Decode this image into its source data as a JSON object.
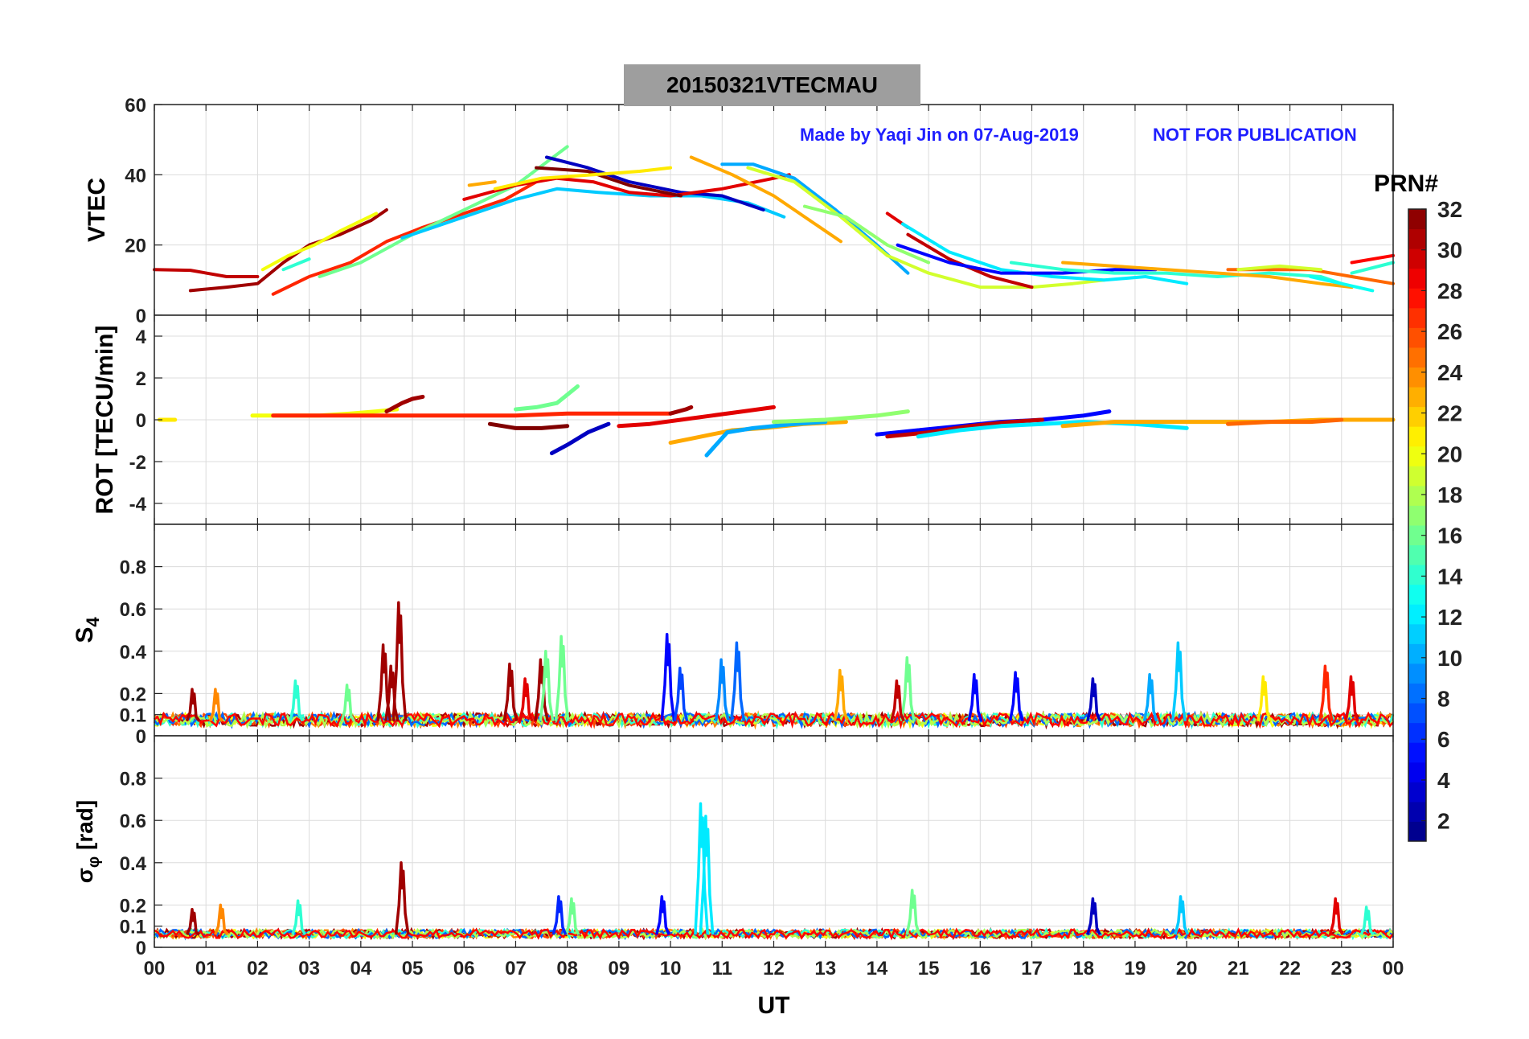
{
  "title": {
    "date": "20150321",
    "quantity": "VTEC",
    "station": "MAU"
  },
  "watermark": {
    "made_by": "Made by Yaqi Jin on 07-Aug-2019",
    "notice": "NOT FOR PUBLICATION"
  },
  "colorbar": {
    "label": "PRN#",
    "range": [
      1,
      32
    ],
    "ticks": [
      "2",
      "4",
      "6",
      "8",
      "10",
      "12",
      "14",
      "16",
      "18",
      "20",
      "22",
      "24",
      "26",
      "28",
      "30",
      "32"
    ],
    "colormap": "jet"
  },
  "xaxis": {
    "label": "UT",
    "range_hours": [
      0,
      24
    ],
    "ticks": [
      "00",
      "01",
      "02",
      "03",
      "04",
      "05",
      "06",
      "07",
      "08",
      "09",
      "10",
      "11",
      "12",
      "13",
      "14",
      "15",
      "16",
      "17",
      "18",
      "19",
      "20",
      "21",
      "22",
      "23",
      "00"
    ]
  },
  "chart_data": [
    {
      "type": "line",
      "panel": "vtec",
      "ylabel": "VTEC",
      "ylim": [
        0,
        60
      ],
      "yticks": [
        "0",
        "20",
        "40",
        "60"
      ],
      "grid": true,
      "series": [
        {
          "prn": 30,
          "x": [
            0.0,
            0.7,
            1.4,
            2.0
          ],
          "values": [
            13,
            12.8,
            11,
            11
          ]
        },
        {
          "prn": 31,
          "x": [
            0.7,
            1.4,
            2.0,
            2.5,
            3.0,
            3.6,
            4.2,
            4.5
          ],
          "values": [
            7,
            8,
            9,
            15,
            20,
            23,
            27,
            30
          ]
        },
        {
          "prn": 20,
          "x": [
            2.1,
            2.6,
            3.1,
            3.6,
            4.3
          ],
          "values": [
            13,
            17,
            20,
            24,
            29
          ]
        },
        {
          "prn": 14,
          "x": [
            2.5,
            3.0
          ],
          "values": [
            13,
            16
          ]
        },
        {
          "prn": 27,
          "x": [
            2.3,
            3.0,
            3.8,
            4.5,
            5.2,
            6.0,
            6.8,
            7.4
          ],
          "values": [
            6,
            11,
            15,
            21,
            25,
            29,
            33,
            38
          ]
        },
        {
          "prn": 16,
          "x": [
            3.2,
            4.0,
            5.0,
            6.0,
            7.0,
            8.0
          ],
          "values": [
            11,
            15,
            23,
            30,
            37,
            48
          ]
        },
        {
          "prn": 11,
          "x": [
            4.8,
            6.0,
            7.0,
            7.8,
            8.6,
            9.6,
            10.6,
            11.5,
            12.2
          ],
          "values": [
            22,
            28,
            33,
            36,
            35,
            34,
            34,
            32,
            28
          ]
        },
        {
          "prn": 3,
          "x": [
            7.6,
            8.4,
            9.2,
            10.2,
            11.0,
            11.8
          ],
          "values": [
            45,
            42,
            38,
            35,
            34,
            30
          ]
        },
        {
          "prn": 29,
          "x": [
            6.0,
            7.0,
            7.8,
            8.5,
            9.2,
            10.0,
            11.0,
            12.0,
            12.3
          ],
          "values": [
            33,
            37,
            39,
            38,
            35,
            34,
            36,
            39,
            40
          ]
        },
        {
          "prn": 32,
          "x": [
            7.4,
            8.4,
            9.2,
            10.2
          ],
          "values": [
            42,
            41,
            37,
            34
          ]
        },
        {
          "prn": 21,
          "x": [
            6.6,
            7.5,
            8.5,
            9.4,
            10.0
          ],
          "values": [
            36,
            39,
            40,
            41,
            42
          ]
        },
        {
          "prn": 23,
          "x": [
            6.1,
            6.6
          ],
          "values": [
            37,
            38
          ]
        },
        {
          "prn": 23,
          "x": [
            10.4,
            11.2,
            12.0,
            12.7,
            13.3
          ],
          "values": [
            45,
            40,
            34,
            27,
            21
          ]
        },
        {
          "prn": 10,
          "x": [
            11.0,
            11.6,
            12.4,
            13.2,
            14.0,
            14.6
          ],
          "values": [
            43,
            43,
            39,
            30,
            20,
            12
          ]
        },
        {
          "prn": 19,
          "x": [
            11.5,
            12.4,
            13.3,
            14.2,
            15.0,
            16.0,
            17.0,
            17.8,
            18.4
          ],
          "values": [
            42,
            38,
            28,
            17,
            12,
            8,
            8,
            9,
            10
          ]
        },
        {
          "prn": 17,
          "x": [
            12.6,
            13.4,
            14.2,
            15.0
          ],
          "values": [
            31,
            28,
            20,
            15
          ]
        },
        {
          "prn": 29,
          "x": [
            14.2,
            14.6
          ],
          "values": [
            29,
            25
          ]
        },
        {
          "prn": 30,
          "x": [
            14.6,
            15.4,
            16.2,
            17.0
          ],
          "values": [
            23,
            16,
            11,
            8
          ]
        },
        {
          "prn": 12,
          "x": [
            14.5,
            15.4,
            16.4,
            17.4,
            18.4,
            19.2,
            20.0
          ],
          "values": [
            26,
            18,
            13,
            11,
            10,
            11,
            9
          ]
        },
        {
          "prn": 5,
          "x": [
            14.4,
            15.4,
            16.4,
            17.6,
            18.6,
            19.4
          ],
          "values": [
            20,
            15,
            12,
            12,
            13,
            13
          ]
        },
        {
          "prn": 14,
          "x": [
            16.6,
            17.6,
            18.6,
            19.6,
            20.6,
            21.6,
            22.6,
            23.0
          ],
          "values": [
            15,
            13,
            12,
            12,
            11,
            12,
            11,
            9
          ]
        },
        {
          "prn": 23,
          "x": [
            17.6,
            18.6,
            19.6,
            20.6,
            21.6,
            22.6,
            23.2
          ],
          "values": [
            15,
            14,
            13,
            12,
            11,
            9,
            8
          ]
        },
        {
          "prn": 25,
          "x": [
            20.8,
            21.6,
            22.4,
            23.2,
            24.0
          ],
          "values": [
            13,
            13,
            13,
            11,
            9
          ]
        },
        {
          "prn": 19,
          "x": [
            21.0,
            21.8,
            22.6
          ],
          "values": [
            13,
            14,
            13
          ]
        },
        {
          "prn": 13,
          "x": [
            22.4,
            23.0,
            23.6
          ],
          "values": [
            11,
            9,
            7
          ]
        },
        {
          "prn": 14,
          "x": [
            23.2,
            24.0
          ],
          "values": [
            12,
            15
          ]
        },
        {
          "prn": 28,
          "x": [
            23.2,
            24.0
          ],
          "values": [
            15,
            17
          ]
        }
      ]
    },
    {
      "type": "scatter",
      "panel": "rot",
      "ylabel": "ROT [TECU/min]",
      "ylim": [
        -5,
        5
      ],
      "yticks": [
        "-4",
        "-2",
        "0",
        "2",
        "4"
      ],
      "grid": true,
      "series": [
        {
          "prn": 21,
          "x": [
            0.1,
            0.3,
            0.4
          ],
          "values": [
            0,
            0,
            0
          ]
        },
        {
          "prn": 20,
          "x": [
            1.9,
            2.3,
            2.7,
            3.2,
            3.8,
            4.3,
            4.7
          ],
          "values": [
            0.2,
            0.2,
            0.2,
            0.2,
            0.3,
            0.4,
            0.5
          ]
        },
        {
          "prn": 31,
          "x": [
            4.5,
            4.8,
            5.0,
            5.2
          ],
          "values": [
            0.4,
            0.8,
            1.0,
            1.1
          ]
        },
        {
          "prn": 27,
          "x": [
            2.3,
            3.0,
            4.0,
            5.0,
            6.0,
            7.0,
            8.0,
            9.0,
            10.0
          ],
          "values": [
            0.2,
            0.2,
            0.2,
            0.2,
            0.2,
            0.2,
            0.3,
            0.3,
            0.3
          ]
        },
        {
          "prn": 16,
          "x": [
            7.0,
            7.4,
            7.8,
            8.0,
            8.2
          ],
          "values": [
            0.5,
            0.6,
            0.8,
            1.2,
            1.6
          ]
        },
        {
          "prn": 32,
          "x": [
            6.5,
            7.0,
            7.5,
            8.0
          ],
          "values": [
            -0.2,
            -0.4,
            -0.4,
            -0.3
          ]
        },
        {
          "prn": 3,
          "x": [
            7.7,
            8.0,
            8.4,
            8.8
          ],
          "values": [
            -1.6,
            -1.2,
            -0.6,
            -0.2
          ]
        },
        {
          "prn": 29,
          "x": [
            9.0,
            9.6,
            10.2,
            10.8,
            11.4,
            12.0
          ],
          "values": [
            -0.3,
            -0.2,
            0.0,
            0.2,
            0.4,
            0.6
          ]
        },
        {
          "prn": 31,
          "x": [
            10.0,
            10.3,
            10.4
          ],
          "values": [
            0.3,
            0.5,
            0.6
          ]
        },
        {
          "prn": 23,
          "x": [
            10.0,
            10.4,
            10.8,
            11.2,
            11.8,
            12.6,
            13.4
          ],
          "values": [
            -1.1,
            -0.9,
            -0.7,
            -0.5,
            -0.4,
            -0.2,
            -0.1
          ]
        },
        {
          "prn": 10,
          "x": [
            10.7,
            11.1,
            11.6,
            12.4,
            13.0
          ],
          "values": [
            -1.7,
            -0.6,
            -0.4,
            -0.2,
            -0.1
          ]
        },
        {
          "prn": 17,
          "x": [
            12.0,
            13.0,
            14.0,
            14.6
          ],
          "values": [
            -0.1,
            0.0,
            0.2,
            0.4
          ]
        },
        {
          "prn": 5,
          "x": [
            14.0,
            14.8,
            15.6,
            16.4,
            17.2,
            18.0,
            18.5
          ],
          "values": [
            -0.7,
            -0.5,
            -0.3,
            -0.1,
            0.0,
            0.2,
            0.4
          ]
        },
        {
          "prn": 30,
          "x": [
            14.2,
            15.0,
            15.8,
            16.6,
            17.2
          ],
          "values": [
            -0.8,
            -0.6,
            -0.3,
            -0.1,
            0.0
          ]
        },
        {
          "prn": 12,
          "x": [
            14.8,
            15.6,
            16.4,
            17.2,
            18.0,
            19.0,
            20.0
          ],
          "values": [
            -0.8,
            -0.5,
            -0.3,
            -0.2,
            -0.1,
            -0.2,
            -0.4
          ]
        },
        {
          "prn": 23,
          "x": [
            17.6,
            18.6,
            19.6,
            20.6,
            21.6,
            22.6,
            23.5,
            24.0
          ],
          "values": [
            -0.3,
            -0.1,
            -0.1,
            -0.1,
            -0.1,
            0.0,
            0.0,
            0.0
          ]
        },
        {
          "prn": 25,
          "x": [
            20.8,
            21.6,
            22.4,
            23.0
          ],
          "values": [
            -0.2,
            -0.1,
            -0.1,
            0.0
          ]
        }
      ]
    },
    {
      "type": "line",
      "panel": "s4",
      "ylabel": "S4",
      "ylim": [
        0,
        1
      ],
      "yticks": [
        "0",
        "0.1",
        "0.2",
        "0.4",
        "0.6",
        "0.8"
      ],
      "grid": true,
      "spikes": [
        {
          "prn": 31,
          "x": 4.75,
          "value": 0.63
        },
        {
          "prn": 31,
          "x": 4.45,
          "value": 0.43
        },
        {
          "prn": 31,
          "x": 4.6,
          "value": 0.33
        },
        {
          "prn": 31,
          "x": 0.75,
          "value": 0.22
        },
        {
          "prn": 24,
          "x": 1.2,
          "value": 0.22
        },
        {
          "prn": 14,
          "x": 2.75,
          "value": 0.26
        },
        {
          "prn": 16,
          "x": 3.75,
          "value": 0.24
        },
        {
          "prn": 31,
          "x": 6.9,
          "value": 0.34
        },
        {
          "prn": 31,
          "x": 7.5,
          "value": 0.36
        },
        {
          "prn": 16,
          "x": 7.6,
          "value": 0.4
        },
        {
          "prn": 16,
          "x": 7.9,
          "value": 0.47
        },
        {
          "prn": 29,
          "x": 7.2,
          "value": 0.27
        },
        {
          "prn": 5,
          "x": 9.95,
          "value": 0.48
        },
        {
          "prn": 7,
          "x": 10.2,
          "value": 0.32
        },
        {
          "prn": 9,
          "x": 11.0,
          "value": 0.36
        },
        {
          "prn": 8,
          "x": 11.3,
          "value": 0.44
        },
        {
          "prn": 23,
          "x": 13.3,
          "value": 0.31
        },
        {
          "prn": 16,
          "x": 14.6,
          "value": 0.37
        },
        {
          "prn": 30,
          "x": 14.4,
          "value": 0.26
        },
        {
          "prn": 5,
          "x": 15.9,
          "value": 0.29
        },
        {
          "prn": 5,
          "x": 16.7,
          "value": 0.3
        },
        {
          "prn": 3,
          "x": 18.2,
          "value": 0.27
        },
        {
          "prn": 11,
          "x": 19.85,
          "value": 0.44
        },
        {
          "prn": 10,
          "x": 19.3,
          "value": 0.29
        },
        {
          "prn": 27,
          "x": 22.7,
          "value": 0.33
        },
        {
          "prn": 29,
          "x": 23.2,
          "value": 0.28
        },
        {
          "prn": 21,
          "x": 21.5,
          "value": 0.28
        }
      ]
    },
    {
      "type": "line",
      "panel": "sigma_phi",
      "ylabel": "σ_φ [rad]",
      "ylim": [
        0,
        1
      ],
      "yticks": [
        "0",
        "0.1",
        "0.2",
        "0.4",
        "0.6",
        "0.8"
      ],
      "grid": true,
      "spikes": [
        {
          "prn": 31,
          "x": 4.8,
          "value": 0.4
        },
        {
          "prn": 31,
          "x": 0.75,
          "value": 0.18
        },
        {
          "prn": 24,
          "x": 1.3,
          "value": 0.2
        },
        {
          "prn": 14,
          "x": 2.8,
          "value": 0.22
        },
        {
          "prn": 16,
          "x": 8.1,
          "value": 0.23
        },
        {
          "prn": 6,
          "x": 7.85,
          "value": 0.24
        },
        {
          "prn": 12,
          "x": 10.6,
          "value": 0.68
        },
        {
          "prn": 12,
          "x": 10.7,
          "value": 0.62
        },
        {
          "prn": 5,
          "x": 9.85,
          "value": 0.24
        },
        {
          "prn": 16,
          "x": 14.7,
          "value": 0.27
        },
        {
          "prn": 3,
          "x": 18.2,
          "value": 0.23
        },
        {
          "prn": 11,
          "x": 19.9,
          "value": 0.24
        },
        {
          "prn": 29,
          "x": 22.9,
          "value": 0.23
        },
        {
          "prn": 14,
          "x": 23.5,
          "value": 0.19
        }
      ]
    }
  ]
}
